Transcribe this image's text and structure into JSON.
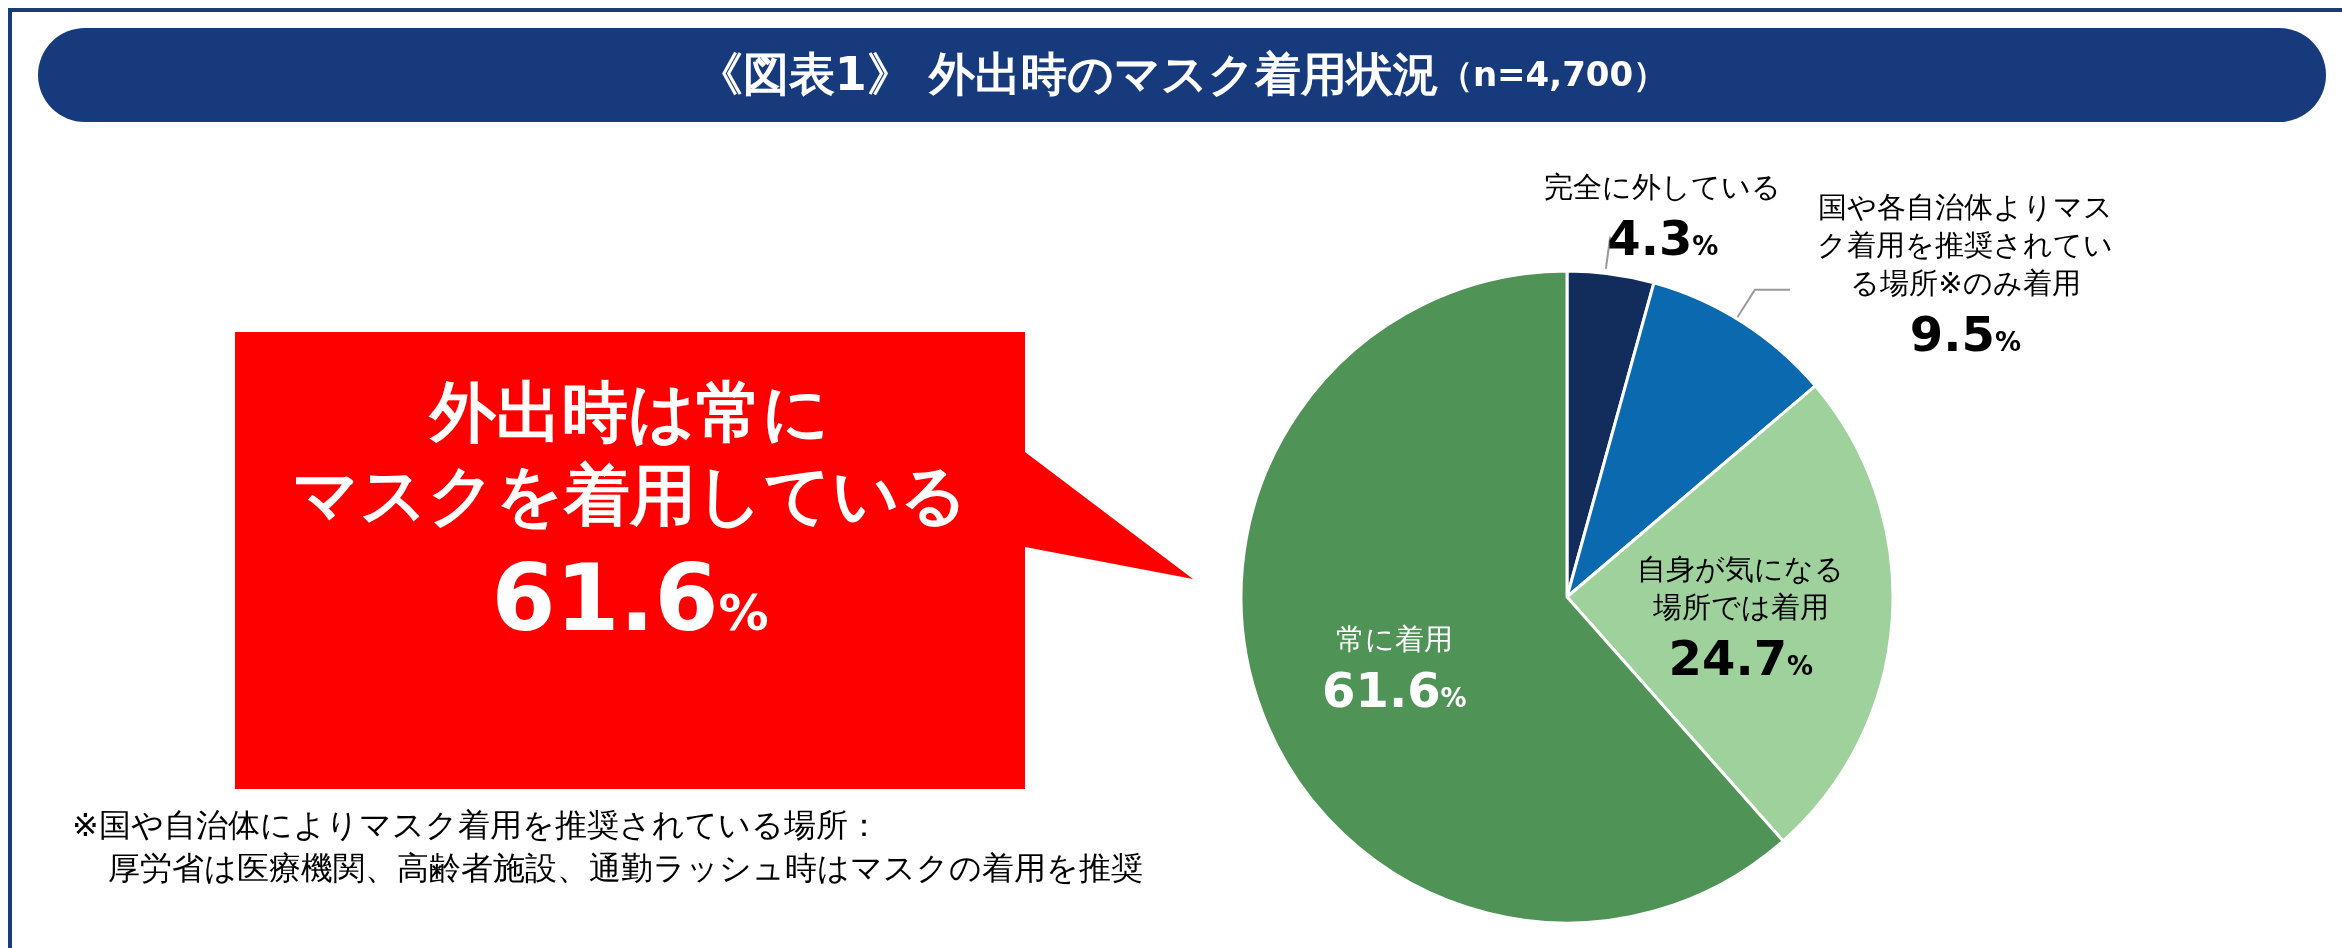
{
  "chart_data": {
    "type": "pie",
    "title": "《図表1》 外出時のマスク着用状況 （n=4,700）",
    "categories": [
      "完全に外している",
      "国や各自治体よりマスク着用を推奨されている場所※のみ着用",
      "自身が気になる場所では着用",
      "常に着用"
    ],
    "values": [
      4.3,
      9.5,
      24.7,
      61.6
    ],
    "colors": [
      "#122c5c",
      "#0b69b0",
      "#9fd19c",
      "#4f9357"
    ],
    "value_labels": [
      "4.3%",
      "9.5%",
      "24.7%",
      "61.6%"
    ],
    "annotations": [
      "外出時は常に",
      "マスクを着用している",
      "61.6%",
      "※国や自治体によりマスク着用を推奨されている場所：",
      "厚労省は医療機関、高齢者施設、通勤ラッシュ時はマスクの着用を推奨"
    ]
  }
}
